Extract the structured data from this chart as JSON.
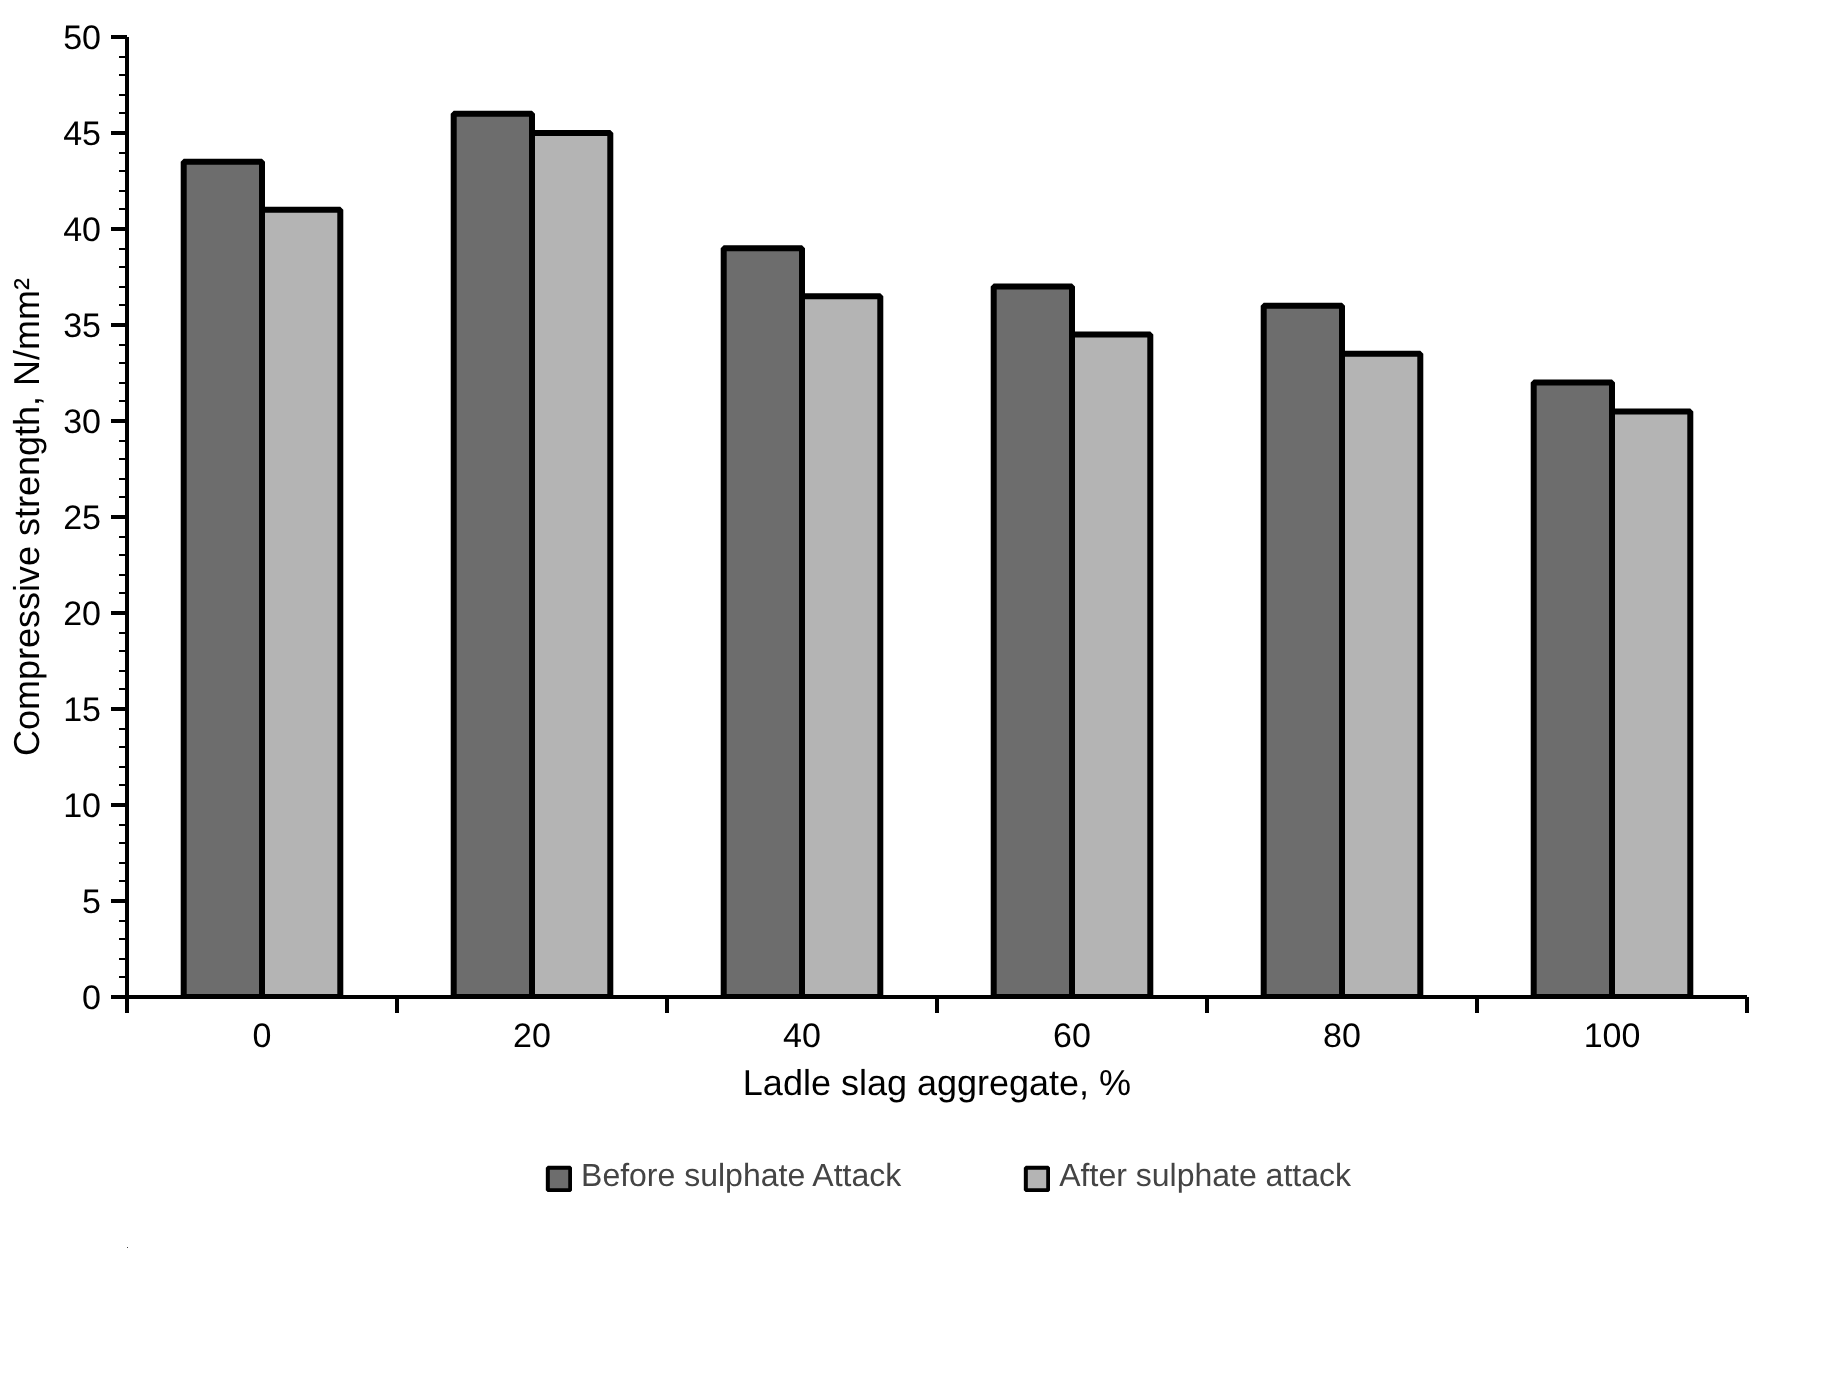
{
  "chart_data": {
    "type": "bar",
    "xlabel": "Ladle slag aggregate, %",
    "ylabel": "Compressive strength, N/mm²",
    "categories": [
      "0",
      "20",
      "40",
      "60",
      "80",
      "100"
    ],
    "series": [
      {
        "name": "Before sulphate Attack",
        "color": "#6d6d6d",
        "values": [
          43.5,
          46,
          39,
          37,
          36,
          32
        ]
      },
      {
        "name": "After sulphate attack",
        "color": "#b4b4b4",
        "values": [
          41,
          45,
          36.5,
          34.5,
          33.5,
          30.5
        ]
      }
    ],
    "ylim": [
      0,
      50
    ],
    "yticks": [
      0,
      5,
      10,
      15,
      20,
      25,
      30,
      35,
      40,
      45,
      50
    ],
    "grid": false,
    "legend": "bottom"
  }
}
